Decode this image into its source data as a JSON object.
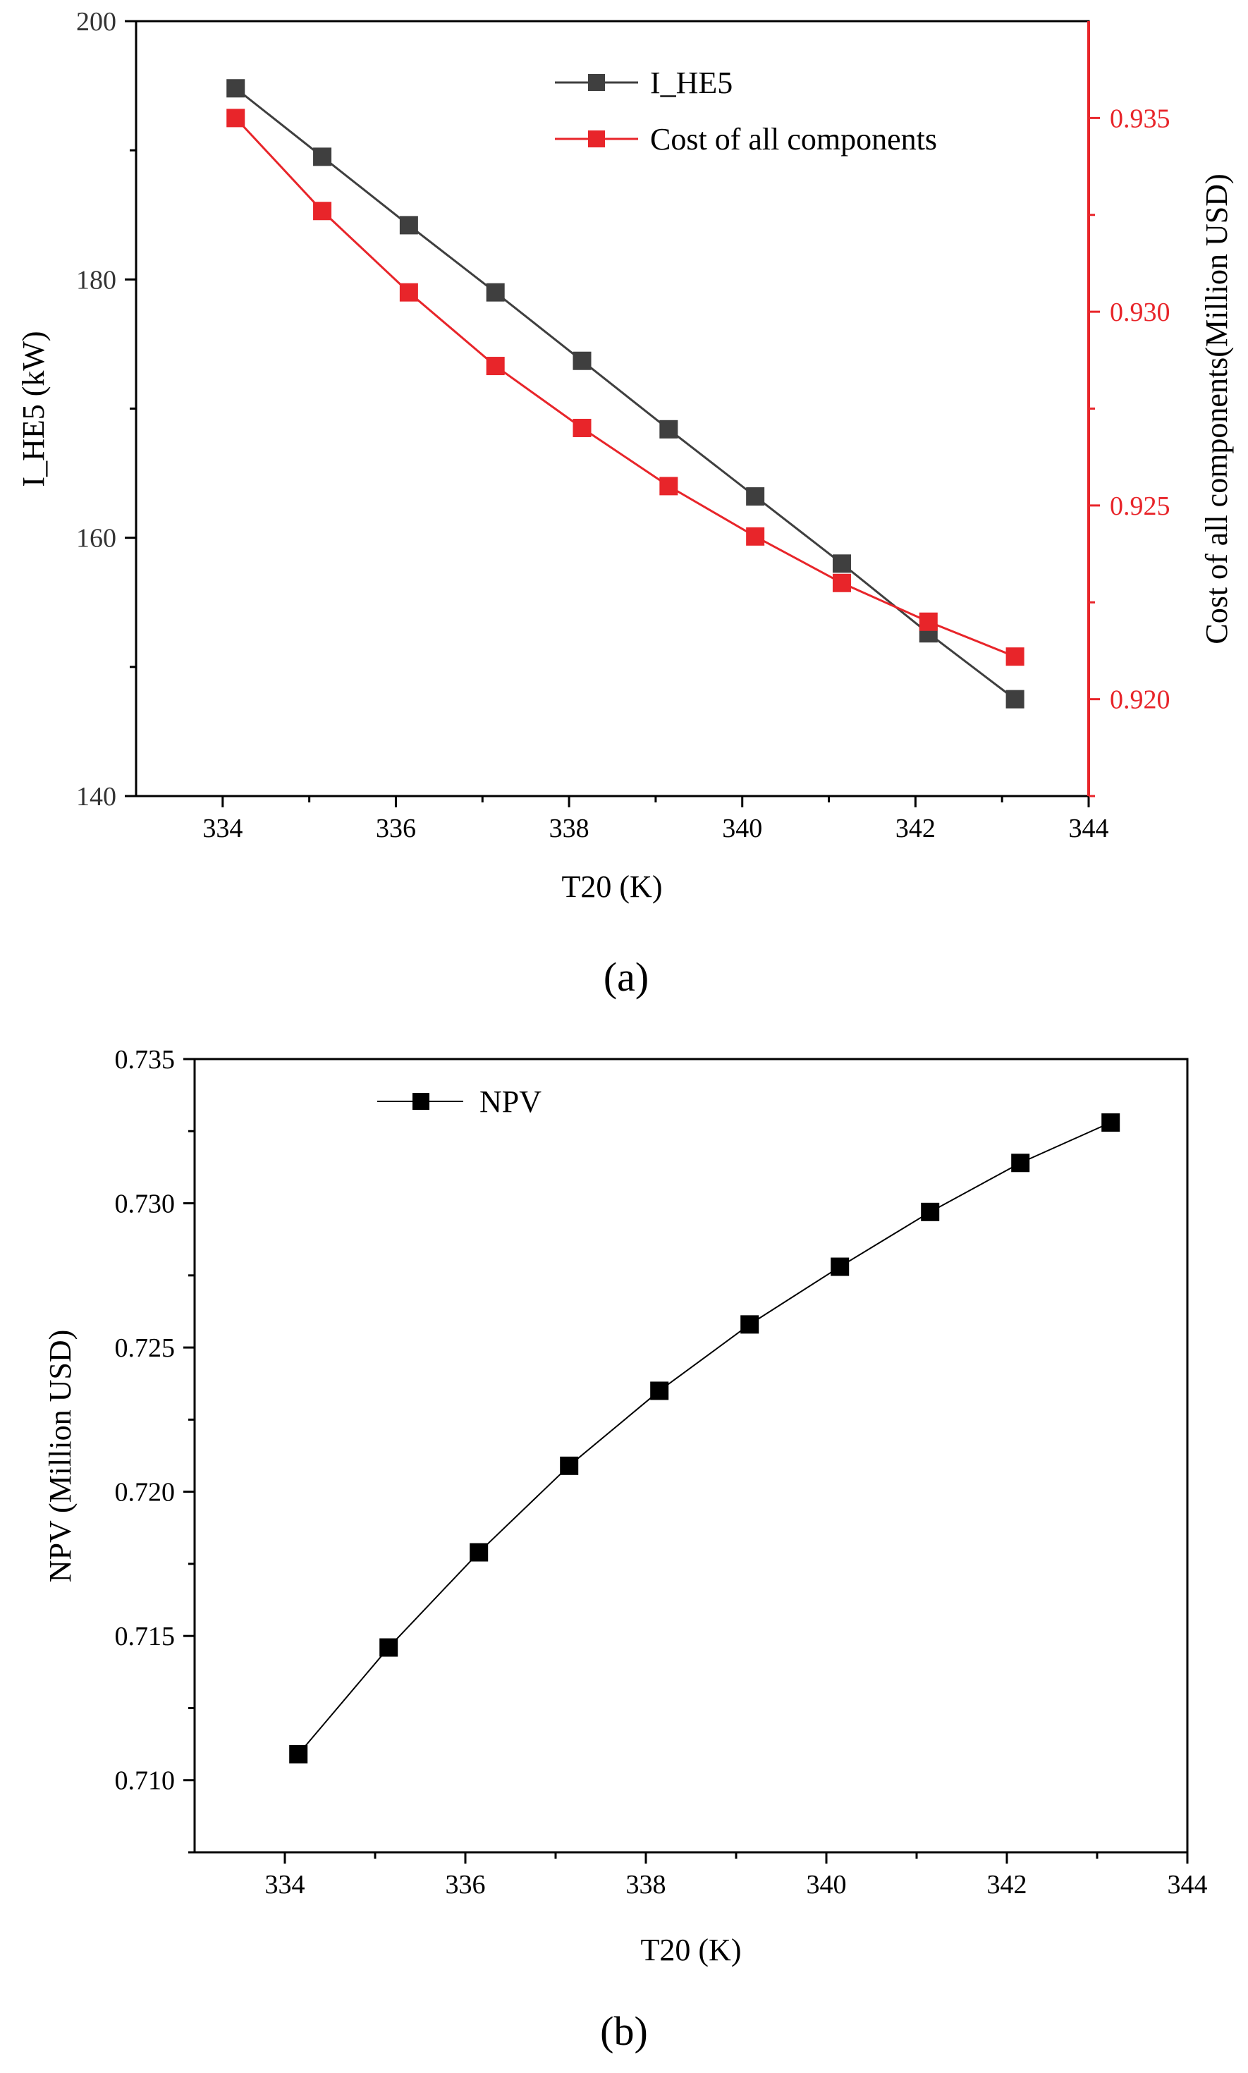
{
  "colors": {
    "left_axis": "#000000",
    "right_axis": "#e8252a",
    "series_ihe5": "#3f3f3f",
    "series_cost": "#e8252a",
    "series_npv": "#000000"
  },
  "panel_labels": [
    "(a)",
    "(b)"
  ],
  "chart_data": [
    {
      "type": "line",
      "panel": "a",
      "title": "",
      "xlabel": "T20 (K)",
      "ylabel": "I_HE5 (kW)",
      "y2label": "Cost of all components(Million USD)",
      "xlim": [
        333,
        344
      ],
      "ylim": [
        140,
        200
      ],
      "y2lim": [
        0.9175,
        0.9375
      ],
      "xticks": [
        334,
        336,
        338,
        340,
        342,
        344
      ],
      "yticks": [
        140,
        160,
        180,
        200
      ],
      "y2ticks": [
        "0.920",
        "0.925",
        "0.930",
        "0.935"
      ],
      "legend_position": "top-right",
      "grid": false,
      "x": [
        334.15,
        335.15,
        336.15,
        337.15,
        338.15,
        339.15,
        340.15,
        341.15,
        342.15,
        343.15
      ],
      "series": [
        {
          "name": "I_HE5",
          "axis": "left",
          "values": [
            194.8,
            189.5,
            184.2,
            179.0,
            173.7,
            168.4,
            163.2,
            158.0,
            152.6,
            147.5
          ]
        },
        {
          "name": "Cost of all components",
          "axis": "right",
          "values": [
            0.935,
            0.9326,
            0.9305,
            0.9286,
            0.927,
            0.9255,
            0.9242,
            0.923,
            0.922,
            0.9211
          ]
        }
      ]
    },
    {
      "type": "line",
      "panel": "b",
      "title": "",
      "xlabel": "T20 (K)",
      "ylabel": "NPV (Million USD)",
      "xlim": [
        333,
        344
      ],
      "ylim": [
        0.7075,
        0.735
      ],
      "xticks": [
        334,
        336,
        338,
        340,
        342,
        344
      ],
      "yticks": [
        "0.710",
        "0.715",
        "0.720",
        "0.725",
        "0.730",
        "0.735"
      ],
      "legend_position": "top-left",
      "grid": false,
      "x": [
        334.15,
        335.15,
        336.15,
        337.15,
        338.15,
        339.15,
        340.15,
        341.15,
        342.15,
        343.15
      ],
      "series": [
        {
          "name": "NPV",
          "values": [
            0.7109,
            0.7146,
            0.7179,
            0.7209,
            0.7235,
            0.7258,
            0.7278,
            0.7297,
            0.7314,
            0.7328
          ]
        }
      ]
    }
  ]
}
